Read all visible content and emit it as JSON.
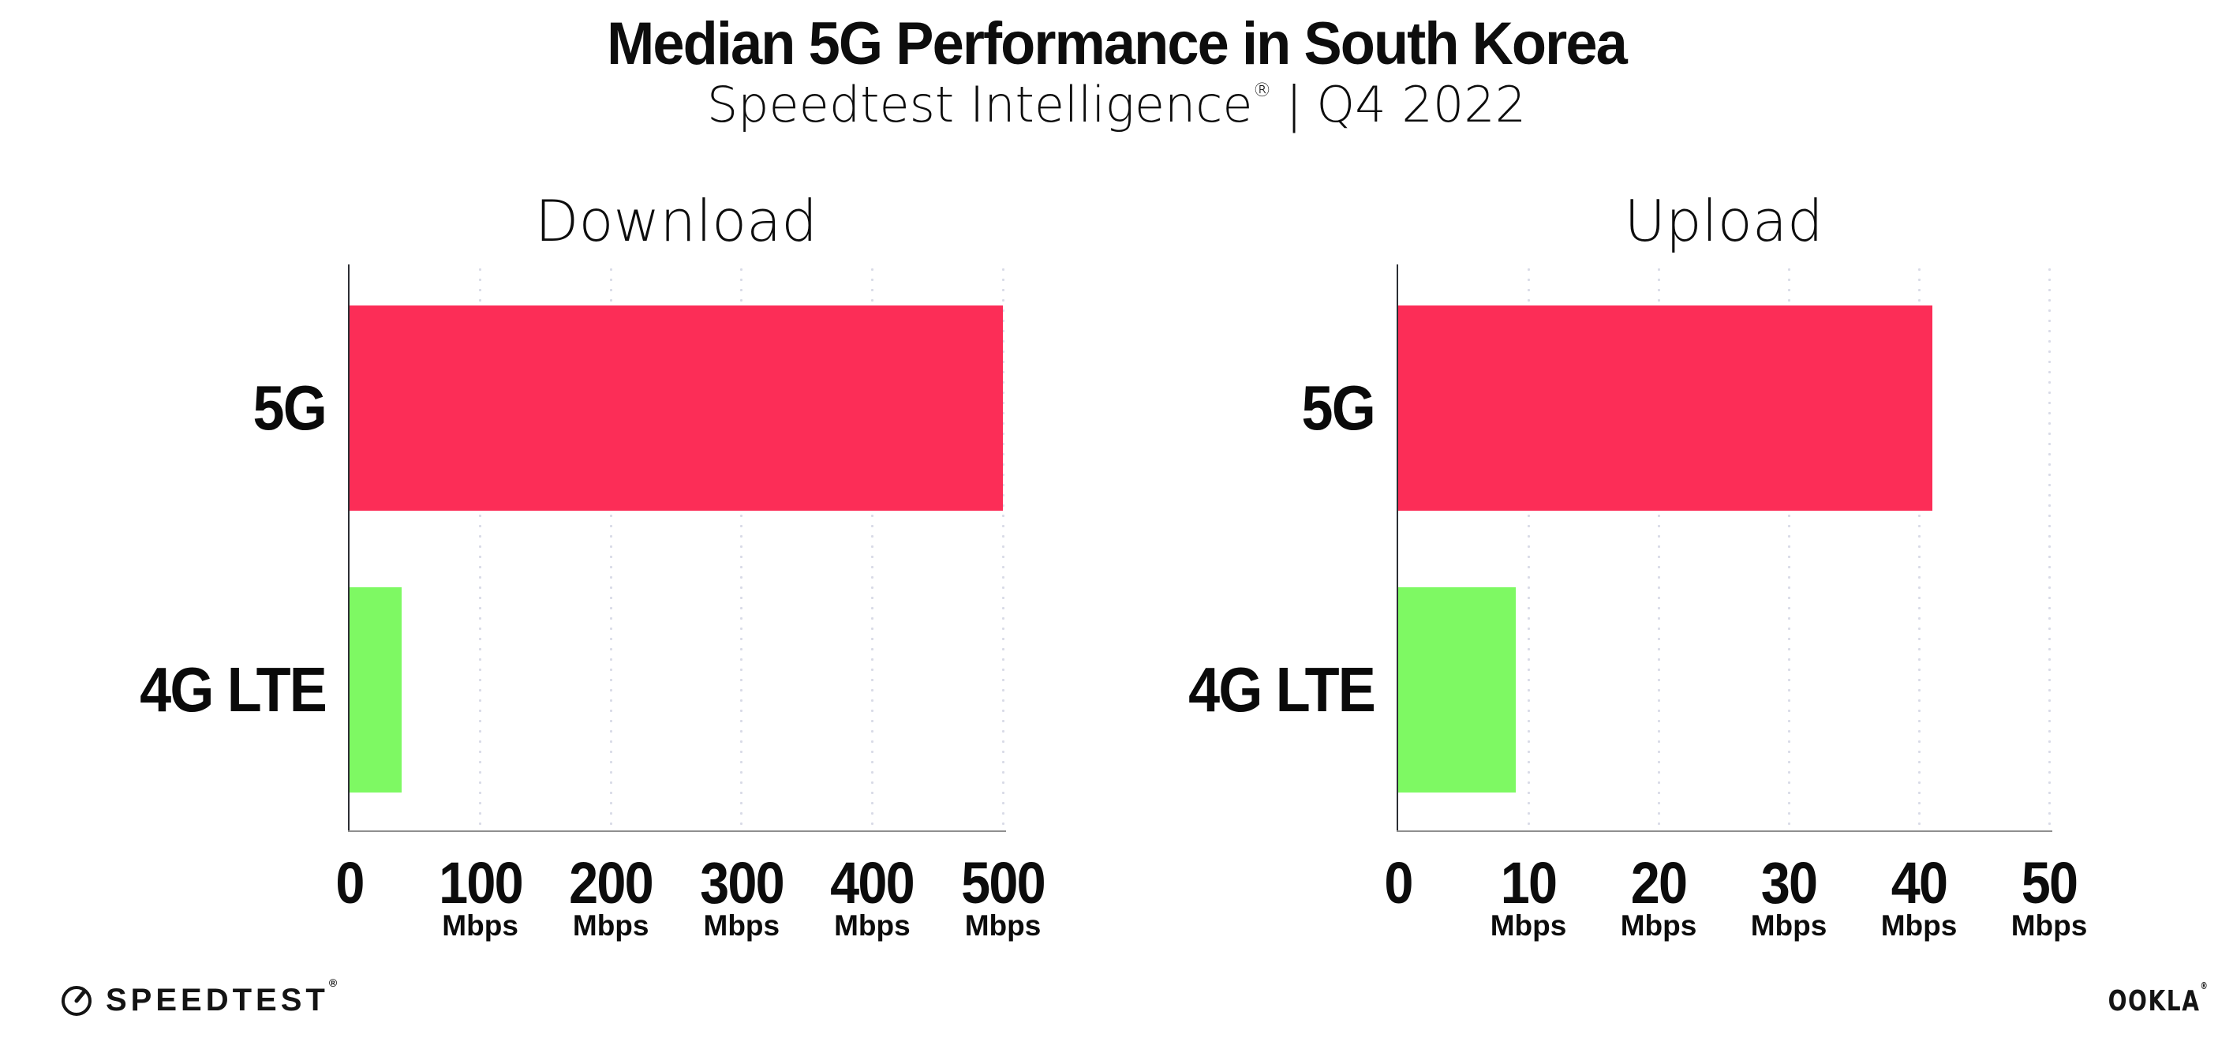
{
  "header": {
    "title": "Median 5G Performance in South Korea",
    "subtitle": {
      "product": "Speedtest Intelligence",
      "registered": "®",
      "divider": "|",
      "period": "Q4 2022"
    }
  },
  "chart_data": [
    {
      "type": "bar",
      "orientation": "horizontal",
      "title": "Download",
      "categories": [
        "5G",
        "4G LTE"
      ],
      "values": [
        500,
        40
      ],
      "unit": "Mbps",
      "xlim": [
        0,
        500
      ],
      "xticks": [
        0,
        100,
        200,
        300,
        400,
        500
      ],
      "bar_colors": [
        "#fc2d57",
        "#7ef963"
      ],
      "grid": "vertical-dotted",
      "legend": "none"
    },
    {
      "type": "bar",
      "orientation": "horizontal",
      "title": "Upload",
      "categories": [
        "5G",
        "4G LTE"
      ],
      "values": [
        41,
        9
      ],
      "unit": "Mbps",
      "xlim": [
        0,
        50
      ],
      "xticks": [
        0,
        10,
        20,
        30,
        40,
        50
      ],
      "bar_colors": [
        "#fc2d57",
        "#7ef963"
      ],
      "grid": "vertical-dotted",
      "legend": "none"
    }
  ],
  "footer": {
    "speedtest_label": "SPEEDTEST",
    "speedtest_mark": "®",
    "speedtest_icon": "gauge",
    "ookla_label": "OOKLA",
    "ookla_mark": "®"
  },
  "colors": {
    "bar_5g": "#fc2d57",
    "bar_4g_lte": "#7ef963",
    "gridline": "#d9dbe7",
    "y_axis": "#2c2e34",
    "x_axis": "#8f8f8f",
    "text": "#0d0d0d",
    "background": "#ffffff"
  }
}
